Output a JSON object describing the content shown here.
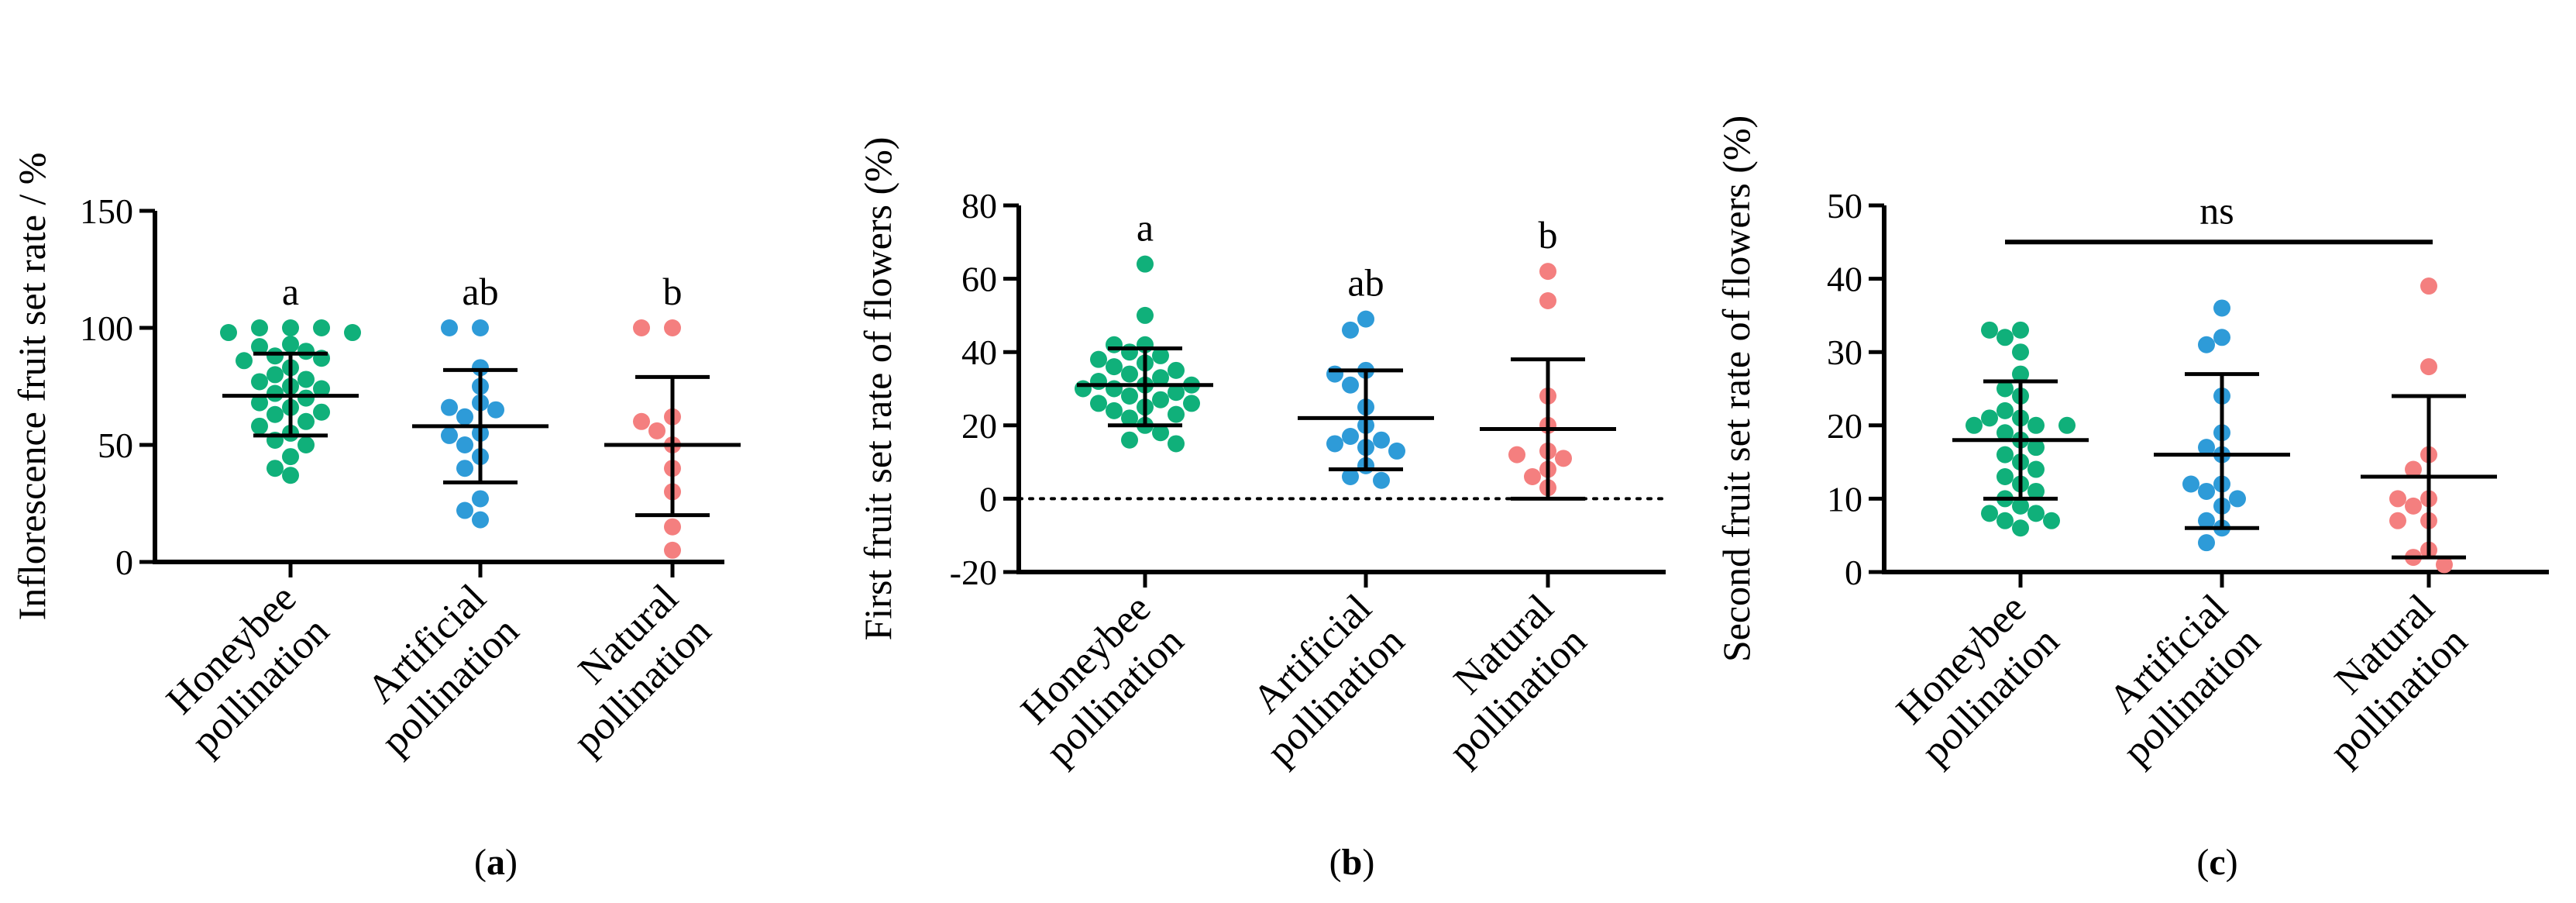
{
  "figure": {
    "panel_labels": [
      "(a)",
      "(b)",
      "(c)"
    ]
  },
  "chart_data": [
    {
      "type": "scatter",
      "panel": "(a)",
      "panel_letter": "a",
      "ylabel": "Inflorescence fruit set rate / %",
      "ylim": [
        0,
        150
      ],
      "yticks": [
        0,
        50,
        100,
        150
      ],
      "zero_line": false,
      "categories": [
        "Honeybee pollination",
        "Artificial pollination",
        "Natural pollination"
      ],
      "category_lines": [
        [
          "Honeybee",
          "pollination"
        ],
        [
          "Artificial",
          "pollination"
        ],
        [
          "Natural",
          "pollination"
        ]
      ],
      "series": [
        {
          "name": "Honeybee pollination",
          "color": "#10b07a",
          "points": [
            100,
            100,
            100,
            98,
            98,
            93,
            92,
            90,
            88,
            87,
            86,
            83,
            80,
            78,
            77,
            75,
            74,
            72,
            70,
            68,
            66,
            64,
            63,
            60,
            58,
            55,
            52,
            50,
            45,
            40,
            37
          ],
          "mean": 71,
          "sd_upper": 89,
          "sd_lower": 54,
          "significance": "a"
        },
        {
          "name": "Artificial pollination",
          "color": "#2e9bd8",
          "points": [
            100,
            100,
            83,
            75,
            68,
            66,
            65,
            62,
            55,
            54,
            50,
            45,
            40,
            27,
            22,
            18
          ],
          "mean": 58,
          "sd_upper": 82,
          "sd_lower": 34,
          "significance": "ab"
        },
        {
          "name": "Natural pollination",
          "color": "#f47f7f",
          "points": [
            100,
            100,
            62,
            60,
            56,
            50,
            40,
            30,
            15,
            5
          ],
          "mean": 50,
          "sd_upper": 79,
          "sd_lower": 20,
          "significance": "b"
        }
      ]
    },
    {
      "type": "scatter",
      "panel": "(b)",
      "panel_letter": "b",
      "ylabel": "First fruit set rate of flowers (%)",
      "ylim": [
        -20,
        80
      ],
      "yticks": [
        -20,
        0,
        20,
        40,
        60,
        80
      ],
      "zero_line": true,
      "categories": [
        "Honeybee pollination",
        "Artificial pollination",
        "Natural pollination"
      ],
      "category_lines": [
        [
          "Honeybee",
          "pollination"
        ],
        [
          "Artificial",
          "pollination"
        ],
        [
          "Natural",
          "pollination"
        ]
      ],
      "series": [
        {
          "name": "Honeybee pollination",
          "color": "#10b07a",
          "points": [
            64,
            50,
            42,
            42,
            40,
            39,
            38,
            37,
            36,
            35,
            34,
            33,
            32,
            31,
            31,
            30,
            30,
            29,
            28,
            27,
            26,
            26,
            25,
            24,
            23,
            22,
            20,
            18,
            16,
            15
          ],
          "mean": 31,
          "sd_upper": 41,
          "sd_lower": 20,
          "significance": "a"
        },
        {
          "name": "Artificial pollination",
          "color": "#2e9bd8",
          "points": [
            49,
            46,
            35,
            34,
            31,
            25,
            20,
            17,
            16,
            15,
            14,
            13,
            9,
            6,
            5
          ],
          "mean": 22,
          "sd_upper": 35,
          "sd_lower": 8,
          "significance": "ab"
        },
        {
          "name": "Natural pollination",
          "color": "#f47f7f",
          "points": [
            62,
            54,
            28,
            20,
            13,
            12,
            11,
            8,
            6,
            3
          ],
          "mean": 19,
          "sd_upper": 38,
          "sd_lower": 0,
          "significance": "b"
        }
      ]
    },
    {
      "type": "scatter",
      "panel": "(c)",
      "panel_letter": "c",
      "ylabel": "Second fruit set rate of flowers  (%)",
      "ylim": [
        0,
        50
      ],
      "yticks": [
        0,
        10,
        20,
        30,
        40,
        50
      ],
      "zero_line": false,
      "bracket_label": "ns",
      "bracket_value": 45,
      "categories": [
        "Honeybee pollination",
        "Artificial pollination",
        "Natural pollination"
      ],
      "category_lines": [
        [
          "Honeybee",
          "pollination"
        ],
        [
          "Artificial",
          "pollination"
        ],
        [
          "Natural",
          "pollination"
        ]
      ],
      "series": [
        {
          "name": "Honeybee pollination",
          "color": "#10b07a",
          "points": [
            33,
            33,
            32,
            30,
            27,
            25,
            24,
            22,
            21,
            21,
            20,
            20,
            20,
            19,
            18,
            17,
            16,
            15,
            14,
            13,
            12,
            11,
            10,
            9,
            8,
            8,
            7,
            7,
            6
          ],
          "mean": 18,
          "sd_upper": 26,
          "sd_lower": 10,
          "significance": ""
        },
        {
          "name": "Artificial pollination",
          "color": "#2e9bd8",
          "points": [
            36,
            32,
            31,
            24,
            19,
            17,
            16,
            12,
            12,
            11,
            10,
            9,
            7,
            6,
            4
          ],
          "mean": 16,
          "sd_upper": 27,
          "sd_lower": 6,
          "significance": ""
        },
        {
          "name": "Natural pollination",
          "color": "#f47f7f",
          "points": [
            39,
            28,
            16,
            14,
            10,
            10,
            9,
            7,
            7,
            3,
            2,
            1
          ],
          "mean": 13,
          "sd_upper": 24,
          "sd_lower": 2,
          "significance": ""
        }
      ]
    }
  ]
}
